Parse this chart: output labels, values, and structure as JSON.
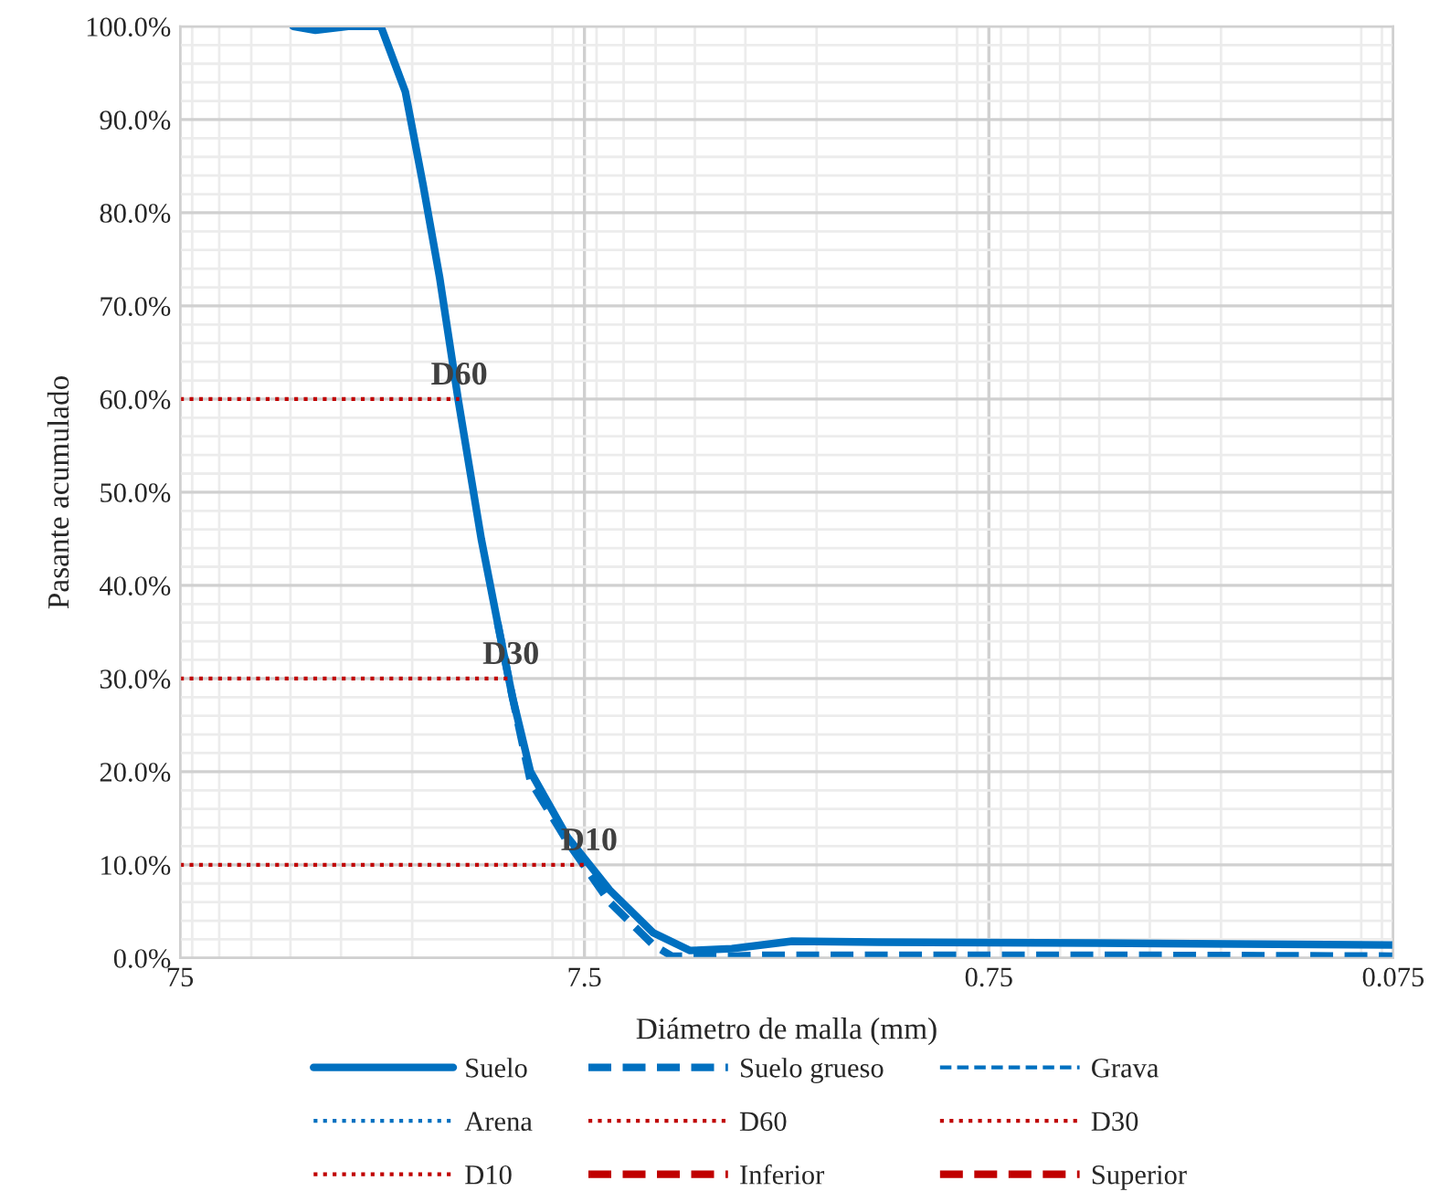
{
  "chart_data": {
    "type": "line",
    "xlabel": "Diámetro de malla (mm)",
    "ylabel": "Pasante acumulado",
    "log": "x",
    "xlim": [
      75,
      0.075
    ],
    "xticks": [
      75,
      7.5,
      0.75,
      0.075
    ],
    "ylim": [
      0,
      100
    ],
    "yticks": [
      {
        "value": 0,
        "label": "0.0%"
      },
      {
        "value": 10,
        "label": "10.0%"
      },
      {
        "value": 20,
        "label": "20.0%"
      },
      {
        "value": 30,
        "label": "30.0%"
      },
      {
        "value": 40,
        "label": "40.0%"
      },
      {
        "value": 50,
        "label": "50.0%"
      },
      {
        "value": 60,
        "label": "60.0%"
      },
      {
        "value": 70,
        "label": "70.0%"
      },
      {
        "value": 80,
        "label": "80.0%"
      },
      {
        "value": 90,
        "label": "90.0%"
      },
      {
        "value": 100,
        "label": "100.0%"
      }
    ],
    "grid": true,
    "legend": "bottom",
    "marker": "none",
    "annotations": [
      {
        "text": "D60",
        "x": 15.3,
        "y": 60
      },
      {
        "text": "D30",
        "x": 11.4,
        "y": 30
      },
      {
        "text": "D10",
        "x": 7.3,
        "y": 10
      }
    ],
    "series": [
      {
        "name": "Suelo",
        "color": "#0070c0",
        "line_style": "solid",
        "x": [
          39.4,
          34.7,
          28.8,
          23.9,
          20.8,
          18.8,
          17.1,
          15.4,
          13.5,
          12.3,
          11.3,
          10.2,
          8.27,
          6.5,
          5.07,
          4.11,
          3.24,
          2.3,
          1.41,
          0.405,
          0.075
        ],
        "values": [
          100,
          99.6,
          100,
          100,
          93,
          83,
          73,
          60,
          45,
          36,
          28,
          20,
          13,
          7.3,
          2.7,
          0.8,
          1,
          1.8,
          1.7,
          1.6,
          1.4
        ]
      },
      {
        "name": "Suelo grueso",
        "color": "#0070c0",
        "line_style": "dashed",
        "x": [
          12.3,
          11.3,
          10.2,
          8.27,
          6.5,
          5.07,
          4.56,
          3.24,
          2.63,
          1.41,
          0.405,
          0.075
        ],
        "values": [
          36,
          28,
          19,
          12.5,
          6,
          1.4,
          0.2,
          0.2,
          0.3,
          0.3,
          0.3,
          0.2
        ]
      },
      {
        "name": "Grava",
        "color": "#0070c0",
        "line_style": "dashed"
      },
      {
        "name": "Arena",
        "color": "#0070c0",
        "line_style": "dotted"
      },
      {
        "name": "D60",
        "color": "#c00000",
        "line_style": "dotted",
        "x": [
          75,
          15.3
        ],
        "values": [
          60,
          60
        ]
      },
      {
        "name": "D30",
        "color": "#c00000",
        "line_style": "dotted",
        "x": [
          75,
          11.4
        ],
        "values": [
          30,
          30
        ]
      },
      {
        "name": "D10",
        "color": "#c00000",
        "line_style": "dotted",
        "x": [
          75,
          7.3
        ],
        "values": [
          10,
          10
        ]
      },
      {
        "name": "Inferior",
        "color": "#c00000",
        "line_style": "dashed"
      },
      {
        "name": "Superior",
        "color": "#c00000",
        "line_style": "dashed"
      }
    ]
  }
}
